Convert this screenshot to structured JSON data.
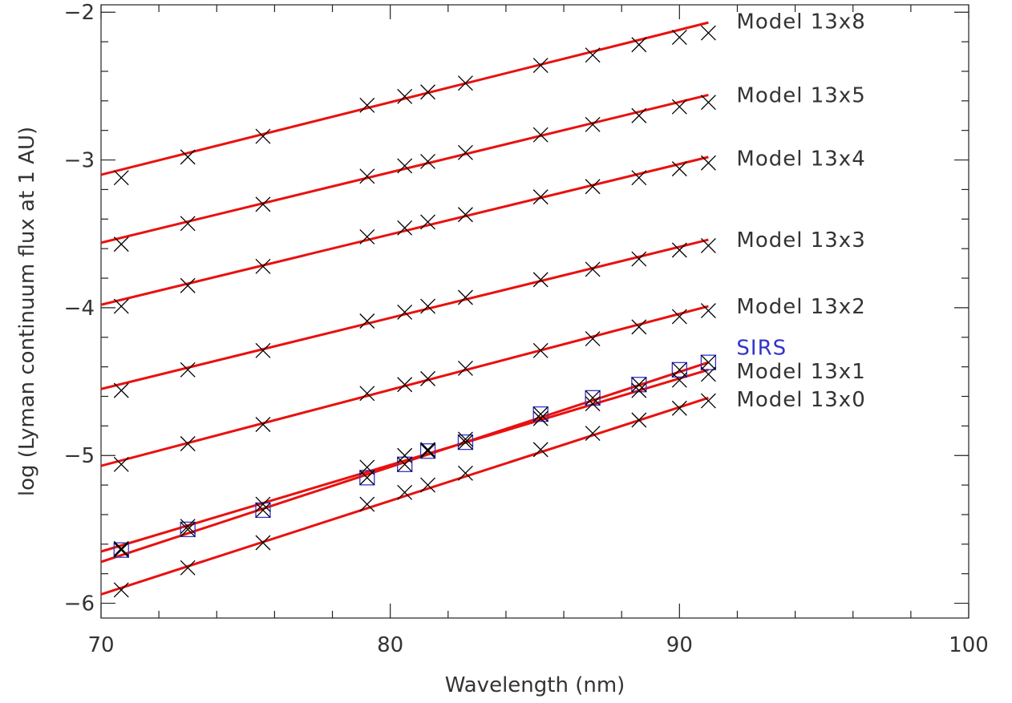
{
  "chart_data": {
    "type": "line",
    "title": "",
    "xlabel": "Wavelength (nm)",
    "ylabel": "log (Lyman continuum flux at 1 AU)",
    "xlim": [
      70,
      100
    ],
    "ylim": [
      -6.1,
      -1.95
    ],
    "x_ticks": [
      70,
      80,
      90,
      100
    ],
    "x_tick_labels": [
      "70",
      "80",
      "90",
      "100"
    ],
    "y_ticks": [
      -6,
      -5,
      -4,
      -3,
      -2
    ],
    "y_tick_labels": [
      "−6",
      "−5",
      "−4",
      "−3",
      "−2"
    ],
    "grid": false,
    "legend": "series labels at right end of lines",
    "x": [
      70.7,
      73.0,
      75.6,
      79.2,
      80.5,
      81.3,
      82.6,
      85.2,
      87.0,
      88.6,
      90.0,
      91.0
    ],
    "fit_x": [
      70,
      91
    ],
    "series": [
      {
        "name": "Model 13x8",
        "color": "#000000",
        "values": [
          -3.12,
          -2.98,
          -2.84,
          -2.63,
          -2.57,
          -2.54,
          -2.48,
          -2.36,
          -2.29,
          -2.22,
          -2.17,
          -2.14
        ],
        "fit": [
          -3.1,
          -2.07
        ]
      },
      {
        "name": "Model 13x5",
        "color": "#000000",
        "values": [
          -3.57,
          -3.43,
          -3.3,
          -3.11,
          -3.04,
          -3.01,
          -2.95,
          -2.83,
          -2.76,
          -2.7,
          -2.64,
          -2.61
        ],
        "fit": [
          -3.56,
          -2.56
        ]
      },
      {
        "name": "Model 13x4",
        "color": "#000000",
        "values": [
          -3.99,
          -3.85,
          -3.72,
          -3.52,
          -3.46,
          -3.42,
          -3.37,
          -3.25,
          -3.18,
          -3.12,
          -3.06,
          -3.02
        ],
        "fit": [
          -3.98,
          -2.98
        ]
      },
      {
        "name": "Model 13x3",
        "color": "#000000",
        "values": [
          -4.56,
          -4.42,
          -4.29,
          -4.09,
          -4.03,
          -3.99,
          -3.93,
          -3.81,
          -3.74,
          -3.67,
          -3.61,
          -3.58
        ],
        "fit": [
          -4.55,
          -3.54
        ]
      },
      {
        "name": "Model 13x2",
        "color": "#000000",
        "values": [
          -5.06,
          -4.92,
          -4.79,
          -4.58,
          -4.52,
          -4.48,
          -4.41,
          -4.29,
          -4.21,
          -4.13,
          -4.06,
          -4.02
        ],
        "fit": [
          -5.07,
          -3.99
        ]
      },
      {
        "name": "SIRS",
        "color": "#3333cc",
        "values": [
          -5.64,
          -5.5,
          -5.37,
          -5.15,
          -5.06,
          -4.97,
          -4.91,
          -4.72,
          -4.61,
          -4.52,
          -4.42,
          -4.37
        ],
        "fit": [
          -5.72,
          -4.37
        ]
      },
      {
        "name": "Model 13x1",
        "color": "#000000",
        "values": [
          -5.63,
          -5.48,
          -5.33,
          -5.08,
          -5.0,
          -4.96,
          -4.89,
          -4.75,
          -4.65,
          -4.56,
          -4.49,
          -4.45
        ],
        "fit": [
          -5.65,
          -4.42
        ]
      },
      {
        "name": "Model 13x0",
        "color": "#000000",
        "values": [
          -5.91,
          -5.76,
          -5.59,
          -5.33,
          -5.25,
          -5.2,
          -5.12,
          -4.96,
          -4.85,
          -4.76,
          -4.68,
          -4.63
        ],
        "fit": [
          -5.94,
          -4.61
        ]
      }
    ],
    "fit_color": "#e8110f"
  }
}
